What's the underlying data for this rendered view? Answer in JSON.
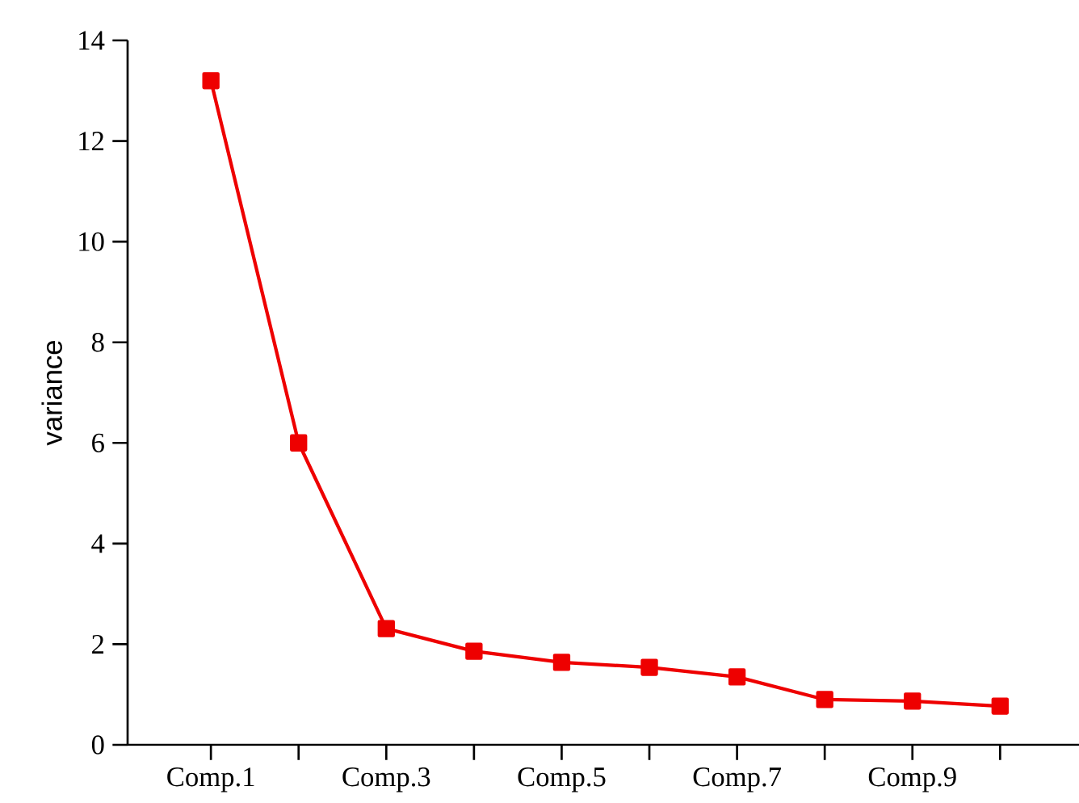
{
  "chart_data": {
    "type": "line",
    "ylabel": "variance",
    "categories": [
      "Comp.1",
      null,
      "Comp.3",
      null,
      "Comp.5",
      null,
      "Comp.7",
      null,
      "Comp.9",
      null
    ],
    "values": [
      13.2,
      6.0,
      2.31,
      1.86,
      1.64,
      1.54,
      1.35,
      0.9,
      0.87,
      0.77
    ],
    "color": "#ee0000",
    "marker": "square",
    "line_style": "solid",
    "ylim": [
      0,
      14
    ],
    "yticks": [
      0,
      2,
      4,
      6,
      8,
      10,
      12,
      14
    ]
  }
}
